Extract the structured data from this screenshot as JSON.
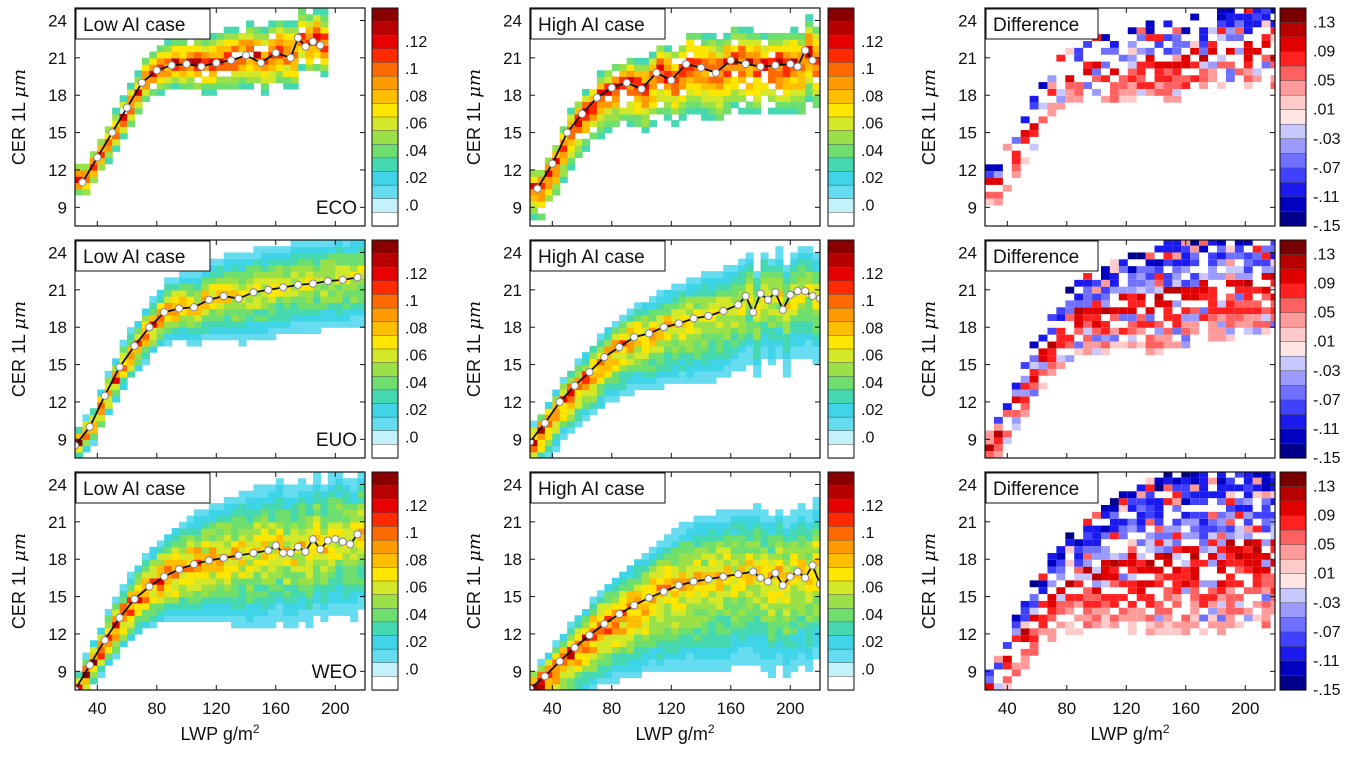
{
  "chart_data": {
    "type": "heatmap",
    "regions": [
      "ECO",
      "EUO",
      "WEO"
    ],
    "panel_titles": [
      "Low AI case",
      "High AI case",
      "Difference"
    ],
    "xlabel_main": "LWP g/m",
    "xlabel_sup": "2",
    "ylabel_main": "CER 1L ",
    "ylabel_unit": "μm",
    "x_ticks": [
      "40",
      "80",
      "120",
      "160",
      "200"
    ],
    "y_ticks": [
      "9",
      "12",
      "15",
      "18",
      "21",
      "24"
    ],
    "xlim": [
      25,
      220
    ],
    "ylim": [
      7.5,
      25
    ],
    "case_colorbar": {
      "tick_labels": [
        ".0",
        ".02",
        ".04",
        ".06",
        ".08",
        ".1",
        ".12"
      ],
      "colors": [
        "#ffffff",
        "#c4f2fa",
        "#66dcf0",
        "#3fd4e8",
        "#46d8b0",
        "#6ede6e",
        "#9ae048",
        "#d4e82a",
        "#ffe600",
        "#ffbe00",
        "#ff9a00",
        "#ff6a00",
        "#ff2a00",
        "#e60000",
        "#b80000",
        "#8a0000"
      ]
    },
    "difference_colorbar": {
      "tick_labels": [
        ".13",
        ".09",
        ".05",
        ".01",
        "-.03",
        "-.07",
        "-.11",
        "-.15"
      ],
      "colors": [
        "#7a0000",
        "#b80000",
        "#e00000",
        "#ff2020",
        "#ff6060",
        "#ff9a9a",
        "#ffcaca",
        "#ffe6e6",
        "#c8c8ff",
        "#9a9aff",
        "#7070ff",
        "#4040ff",
        "#1a1aee",
        "#0000c0",
        "#00008a"
      ]
    },
    "mean_curves": {
      "ECO": {
        "low": {
          "x": [
            30,
            40,
            50,
            60,
            70,
            80,
            90,
            100,
            110,
            120,
            130,
            140,
            150,
            160,
            170,
            175,
            180,
            185,
            190
          ],
          "y": [
            11,
            13,
            15,
            17,
            19,
            20,
            20.4,
            20.5,
            20.3,
            20.6,
            20.8,
            21.2,
            20.6,
            21.4,
            21,
            22.6,
            21.9,
            22.3,
            22
          ]
        },
        "high": {
          "x": [
            30,
            40,
            50,
            60,
            70,
            80,
            90,
            100,
            110,
            120,
            130,
            140,
            150,
            160,
            170,
            180,
            190,
            200,
            205,
            210,
            215
          ],
          "y": [
            10.5,
            12.5,
            15,
            16.5,
            17.8,
            18.6,
            19,
            18.5,
            19.8,
            19.2,
            20.5,
            20.2,
            19.8,
            20.8,
            20.5,
            20.3,
            20.4,
            20.5,
            20.3,
            21.6,
            20.8
          ]
        }
      },
      "EUO": {
        "low": {
          "x": [
            25,
            35,
            45,
            55,
            65,
            75,
            85,
            95,
            105,
            115,
            125,
            135,
            145,
            155,
            165,
            175,
            185,
            195,
            205,
            215
          ],
          "y": [
            8.5,
            10,
            12.5,
            14.8,
            16.5,
            18,
            19.2,
            19.5,
            19.6,
            20.2,
            20.5,
            20.3,
            20.8,
            21,
            21.2,
            21.4,
            21.5,
            21.7,
            21.8,
            22
          ]
        },
        "high": {
          "x": [
            25,
            35,
            45,
            55,
            65,
            75,
            85,
            95,
            105,
            115,
            125,
            135,
            145,
            155,
            165,
            170,
            175,
            180,
            185,
            190,
            195,
            200,
            205,
            210,
            215,
            220
          ],
          "y": [
            8.8,
            10.3,
            12,
            13.3,
            14.4,
            15.6,
            16.4,
            17.2,
            17.5,
            18,
            18.3,
            18.7,
            18.9,
            19.3,
            19.8,
            20.5,
            19.2,
            20.7,
            20.2,
            20.8,
            19.4,
            20.6,
            20.9,
            20.9,
            20.5,
            20.3
          ]
        }
      },
      "WEO": {
        "low": {
          "x": [
            25,
            35,
            45,
            55,
            65,
            75,
            85,
            95,
            105,
            115,
            125,
            135,
            145,
            155,
            160,
            165,
            170,
            175,
            180,
            185,
            190,
            195,
            200,
            205,
            210,
            215
          ],
          "y": [
            7.5,
            9.5,
            11.5,
            13.3,
            14.8,
            15.8,
            16.6,
            17.2,
            17.6,
            17.9,
            18.1,
            18.3,
            18.5,
            18.7,
            19.1,
            18.5,
            18.5,
            19,
            18.6,
            19.6,
            18.8,
            19.5,
            19.6,
            19.4,
            19.2,
            20
          ]
        },
        "high": {
          "x": [
            25,
            35,
            45,
            55,
            65,
            75,
            85,
            95,
            105,
            115,
            125,
            135,
            145,
            155,
            165,
            175,
            180,
            185,
            190,
            195,
            200,
            205,
            210,
            215,
            220
          ],
          "y": [
            7.6,
            8.6,
            9.8,
            10.9,
            11.9,
            12.8,
            13.6,
            14.3,
            14.9,
            15.4,
            15.9,
            16.2,
            16.4,
            16.6,
            16.8,
            17,
            16.5,
            16.2,
            16.9,
            15.9,
            16.6,
            17,
            16.5,
            17.5,
            16
          ]
        }
      }
    }
  }
}
